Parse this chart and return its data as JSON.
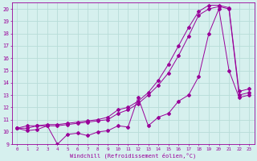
{
  "title": "",
  "xlabel": "Windchill (Refroidissement éolien,°C)",
  "background_color": "#d6f0ee",
  "grid_color": "#b8dcd8",
  "line_color": "#990099",
  "xlim": [
    -0.5,
    23.5
  ],
  "ylim": [
    9,
    20.5
  ],
  "xticks": [
    0,
    1,
    2,
    3,
    4,
    5,
    6,
    7,
    8,
    9,
    10,
    11,
    12,
    13,
    14,
    15,
    16,
    17,
    18,
    19,
    20,
    21,
    22,
    23
  ],
  "yticks": [
    9,
    10,
    11,
    12,
    13,
    14,
    15,
    16,
    17,
    18,
    19,
    20
  ],
  "series1_x": [
    0,
    1,
    2,
    3,
    4,
    5,
    6,
    7,
    8,
    9,
    10,
    11,
    12,
    13,
    14,
    15,
    16,
    17,
    18,
    19,
    20,
    21,
    22,
    23
  ],
  "series1_y": [
    10.3,
    10.1,
    10.2,
    10.5,
    9.0,
    9.8,
    9.9,
    9.7,
    10.0,
    10.1,
    10.5,
    10.4,
    12.8,
    10.5,
    11.2,
    11.5,
    12.5,
    13.0,
    14.5,
    18.0,
    20.0,
    15.0,
    12.8,
    13.0
  ],
  "series2_x": [
    0,
    1,
    2,
    3,
    4,
    5,
    6,
    7,
    8,
    9,
    10,
    11,
    12,
    13,
    14,
    15,
    16,
    17,
    18,
    19,
    20,
    21,
    22,
    23
  ],
  "series2_y": [
    10.3,
    10.5,
    10.5,
    10.5,
    10.5,
    10.6,
    10.7,
    10.8,
    10.9,
    11.0,
    11.5,
    11.8,
    12.3,
    13.0,
    13.8,
    14.8,
    16.2,
    17.8,
    19.5,
    20.0,
    20.2,
    20.0,
    13.0,
    13.2
  ],
  "series3_x": [
    0,
    1,
    2,
    3,
    4,
    5,
    6,
    7,
    8,
    9,
    10,
    11,
    12,
    13,
    14,
    15,
    16,
    17,
    18,
    19,
    20,
    21,
    22,
    23
  ],
  "series3_y": [
    10.3,
    10.3,
    10.5,
    10.6,
    10.6,
    10.7,
    10.8,
    10.9,
    11.0,
    11.2,
    11.8,
    12.0,
    12.5,
    13.2,
    14.2,
    15.5,
    17.0,
    18.5,
    19.8,
    20.3,
    20.3,
    20.1,
    13.3,
    13.5
  ]
}
